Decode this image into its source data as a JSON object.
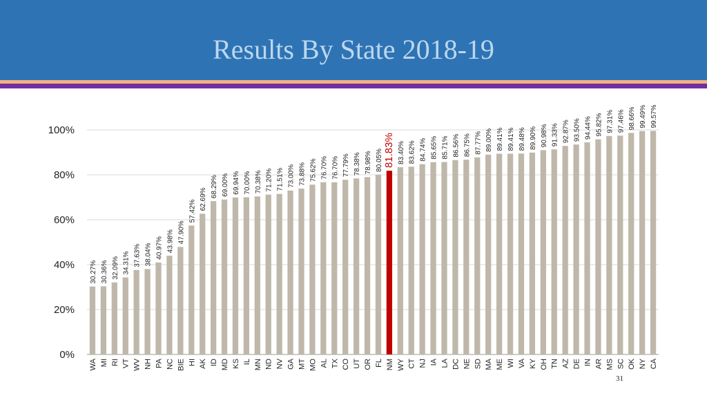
{
  "slide": {
    "title": "Results By State 2018-19",
    "page_number": "31"
  },
  "colors": {
    "header_bg": "#2e74b5",
    "title_text": "#bdd7ee",
    "bar": "#bfb8aa",
    "highlight_bar": "#c00000",
    "highlight_label": "#c00000"
  },
  "chart_data": {
    "type": "bar",
    "title": "",
    "xlabel": "",
    "ylabel": "",
    "ylim": [
      0,
      100
    ],
    "y_ticks": [
      "0%",
      "20%",
      "40%",
      "60%",
      "80%",
      "100%"
    ],
    "grid": true,
    "highlight_category": "NM",
    "categories": [
      "WA",
      "MI",
      "RI",
      "VT",
      "WV",
      "NH",
      "PA",
      "NC",
      "BIE",
      "HI",
      "AK",
      "ID",
      "MD",
      "KS",
      "IL",
      "MN",
      "ND",
      "NV",
      "GA",
      "MT",
      "MO",
      "AL",
      "TX",
      "CO",
      "UT",
      "OR",
      "FL",
      "NM",
      "WY",
      "CT",
      "NJ",
      "IA",
      "LA",
      "DC",
      "NE",
      "SD",
      "MA",
      "ME",
      "WI",
      "VA",
      "KY",
      "OH",
      "TN",
      "AZ",
      "DE",
      "IN",
      "AR",
      "MS",
      "SC",
      "OK",
      "NY",
      "CA"
    ],
    "values": [
      30.27,
      30.36,
      32.09,
      34.31,
      37.63,
      38.04,
      40.97,
      43.98,
      47.9,
      57.42,
      62.69,
      68.29,
      69.0,
      69.94,
      70.0,
      70.38,
      71.2,
      71.51,
      73.0,
      73.88,
      75.62,
      76.7,
      76.7,
      77.79,
      78.38,
      78.98,
      80.05,
      81.83,
      83.4,
      83.62,
      84.74,
      85.65,
      85.71,
      86.56,
      86.75,
      87.77,
      89.0,
      89.41,
      89.41,
      89.48,
      89.9,
      90.98,
      91.33,
      92.87,
      93.5,
      94.44,
      95.82,
      97.31,
      97.46,
      98.66,
      99.49,
      99.57
    ],
    "data_labels": [
      "30.27%",
      "30.36%",
      "32.09%",
      "34.31%",
      "37.63%",
      "38.04%",
      "40.97%",
      "43.98%",
      "47.90%",
      "57.42%",
      "62.69%",
      "68.29%",
      "69.00%",
      "69.94%",
      "70.00%",
      "70.38%",
      "71.20%",
      "71.51%",
      "73.00%",
      "73.88%",
      "75.62%",
      "76.70%",
      "76.70%",
      "77.79%",
      "78.38%",
      "78.98%",
      "80.05%",
      "81.83%",
      "83.40%",
      "83.62%",
      "84.74%",
      "85.65%",
      "85.71%",
      "86.56%",
      "86.75%",
      "87.77%",
      "89.00%",
      "89.41%",
      "89.41%",
      "89.48%",
      "89.90%",
      "90.98%",
      "91.33%",
      "92.87%",
      "93.50%",
      "94.44%",
      "95.82%",
      "97.31%",
      "97.46%",
      "98.66%",
      "99.49%",
      "99.57%"
    ]
  }
}
